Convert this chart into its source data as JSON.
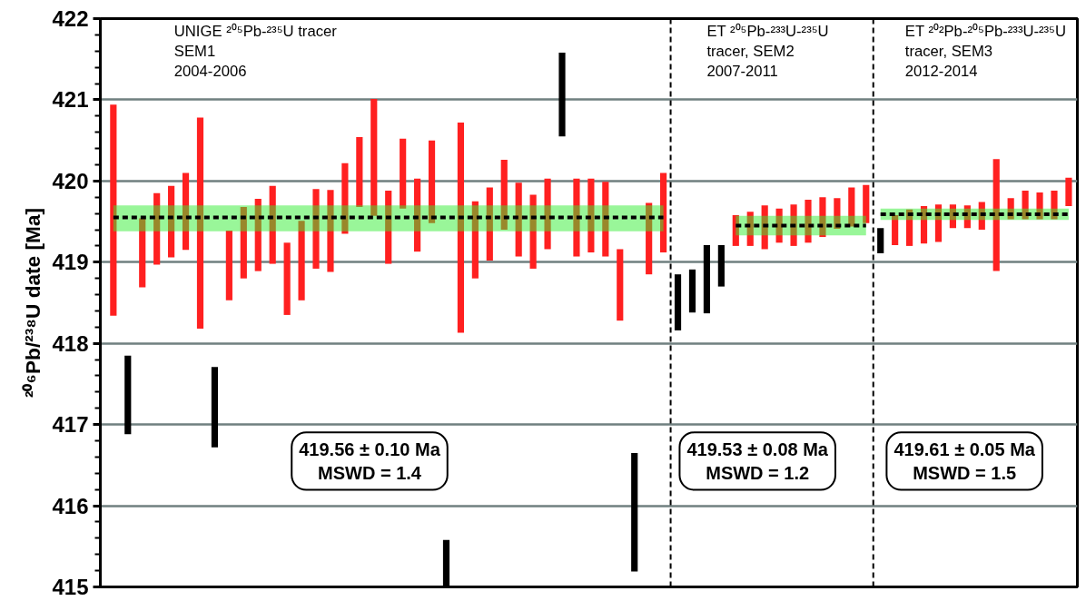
{
  "chart_data": {
    "type": "bar",
    "ylabel": "²⁰⁶Pb/²³⁸U date [Ma]",
    "categories": [
      null,
      null,
      null,
      null,
      null,
      null,
      null,
      null,
      null,
      null,
      null,
      null,
      null,
      null,
      null,
      null,
      null,
      null,
      null,
      null,
      null,
      null,
      null,
      null,
      null,
      null,
      null,
      null,
      null,
      null,
      null,
      null,
      null,
      null,
      null,
      null,
      null,
      null,
      null,
      null,
      null,
      null,
      null,
      null,
      null,
      null,
      null,
      null,
      null,
      null,
      null,
      null,
      null,
      null,
      null,
      null,
      null,
      null,
      null,
      null,
      null,
      null,
      null,
      null,
      null,
      null,
      null
    ],
    "ylim": [
      415,
      422
    ],
    "yticks": [
      415,
      416,
      417,
      418,
      419,
      420,
      421,
      422
    ],
    "grid": "y",
    "tick_labels": "y",
    "annotations": [
      "UNIGE ²⁰⁵Pb-²³⁵U tracer\nSEM1\n2004-2006",
      "ET ²⁰⁵Pb-²³³U-²³⁵U\ntracer, SEM2\n2007-2011",
      "ET ²⁰²Pb-²⁰⁵Pb-²³³U-²³⁵U\ntracer, SEM3\n2012-2014",
      "419.56 ± 0.10 Ma\nMSWD = 1.4",
      "419.53 ± 0.08 Ma\nMSWD = 1.2",
      "419.61 ± 0.05 Ma\nMSWD = 1.5"
    ],
    "series": [
      {
        "base": [
          418.34,
          416.88,
          418.69,
          418.97,
          419.06,
          419.15,
          418.18,
          416.72,
          418.53,
          418.8,
          418.89,
          418.98,
          418.35,
          418.53,
          418.92,
          418.88,
          419.35,
          419.68,
          419.57,
          418.98,
          419.66,
          419.13,
          419.48,
          415.0,
          418.13,
          418.8,
          419.02,
          419.4,
          419.07,
          418.92,
          419.16,
          420.55,
          419.07,
          419.12,
          419.07,
          418.28,
          415.19,
          418.85,
          419.12,
          418.16,
          418.38,
          418.37,
          418.7,
          419.2,
          419.2,
          419.16,
          419.24,
          419.2,
          419.24,
          419.31,
          419.41,
          419.44,
          419.48,
          419.11,
          419.21,
          419.2,
          419.23,
          419.25,
          419.42,
          419.42,
          419.4,
          418.89,
          419.53,
          419.53,
          419.53,
          419.53,
          419.69
        ],
        "values": [
          2.6,
          0.97,
          0.85,
          0.88,
          0.88,
          0.95,
          2.6,
          0.99,
          0.86,
          0.88,
          0.89,
          0.96,
          0.89,
          0.98,
          0.98,
          1.01,
          0.87,
          0.86,
          1.44,
          0.9,
          0.86,
          0.9,
          1.02,
          0.58,
          2.59,
          0.95,
          0.9,
          0.86,
          0.91,
          0.91,
          0.87,
          1.03,
          0.96,
          0.91,
          0.92,
          0.88,
          1.46,
          0.88,
          0.98,
          0.69,
          0.53,
          0.84,
          0.51,
          0.38,
          0.42,
          0.54,
          0.42,
          0.51,
          0.53,
          0.49,
          0.38,
          0.48,
          0.47,
          0.31,
          0.37,
          0.45,
          0.46,
          0.46,
          0.29,
          0.28,
          0.34,
          1.38,
          0.26,
          0.35,
          0.33,
          0.35,
          0.35
        ],
        "colors": [
          "#ff2020",
          "#000000",
          "#ff2020",
          "#ff2020",
          "#ff2020",
          "#ff2020",
          "#ff2020",
          "#000000",
          "#ff2020",
          "#ff2020",
          "#ff2020",
          "#ff2020",
          "#ff2020",
          "#ff2020",
          "#ff2020",
          "#ff2020",
          "#ff2020",
          "#ff2020",
          "#ff2020",
          "#ff2020",
          "#ff2020",
          "#ff2020",
          "#ff2020",
          "#000000",
          "#ff2020",
          "#ff2020",
          "#ff2020",
          "#ff2020",
          "#ff2020",
          "#ff2020",
          "#ff2020",
          "#000000",
          "#ff2020",
          "#ff2020",
          "#ff2020",
          "#ff2020",
          "#000000",
          "#ff2020",
          "#ff2020",
          "#000000",
          "#000000",
          "#000000",
          "#000000",
          "#ff2020",
          "#ff2020",
          "#ff2020",
          "#ff2020",
          "#ff2020",
          "#ff2020",
          "#ff2020",
          "#ff2020",
          "#ff2020",
          "#ff2020",
          "#000000",
          "#ff2020",
          "#ff2020",
          "#ff2020",
          "#ff2020",
          "#ff2020",
          "#ff2020",
          "#ff2020",
          "#ff2020",
          "#ff2020",
          "#ff2020",
          "#ff2020",
          "#ff2020",
          "#ff2020"
        ]
      },
      {
        "type": "line",
        "values": [
          419.55,
          419.55,
          419.55,
          419.55,
          419.55,
          419.55,
          419.55,
          419.55,
          419.55,
          419.55,
          419.55,
          419.55,
          419.55,
          419.55,
          419.55,
          419.55,
          419.55,
          419.55,
          419.55,
          419.55,
          419.55,
          419.55,
          419.55,
          419.55,
          419.55,
          419.55,
          419.55,
          419.55,
          419.55,
          419.55,
          419.55,
          419.55,
          419.55,
          419.55,
          419.55,
          419.55,
          419.55,
          419.55,
          419.55,
          null,
          null,
          null,
          null,
          null,
          null,
          null,
          null,
          null,
          null,
          null,
          null,
          null,
          null,
          null,
          null,
          null,
          null,
          null,
          null,
          null,
          null,
          null,
          null,
          null,
          null,
          null,
          null
        ],
        "lower": [
          419.38,
          419.38,
          419.38,
          419.38,
          419.38,
          419.38,
          419.38,
          419.38,
          419.38,
          419.38,
          419.38,
          419.38,
          419.38,
          419.38,
          419.38,
          419.38,
          419.38,
          419.38,
          419.38,
          419.38,
          419.38,
          419.38,
          419.38,
          419.38,
          419.38,
          419.38,
          419.38,
          419.38,
          419.38,
          419.38,
          419.38,
          419.38,
          419.38,
          419.38,
          419.38,
          419.38,
          419.38,
          419.38,
          419.38,
          null,
          null,
          null,
          null,
          null,
          null,
          null,
          null,
          null,
          null,
          null,
          null,
          null,
          null,
          null,
          null,
          null,
          null,
          null,
          null,
          null,
          null,
          null,
          null,
          null,
          null,
          null,
          null
        ],
        "upper": [
          419.7,
          419.7,
          419.7,
          419.7,
          419.7,
          419.7,
          419.7,
          419.7,
          419.7,
          419.7,
          419.7,
          419.7,
          419.7,
          419.7,
          419.7,
          419.7,
          419.7,
          419.7,
          419.7,
          419.7,
          419.7,
          419.7,
          419.7,
          419.7,
          419.7,
          419.7,
          419.7,
          419.7,
          419.7,
          419.7,
          419.7,
          419.7,
          419.7,
          419.7,
          419.7,
          419.7,
          419.7,
          419.7,
          419.7,
          null,
          null,
          null,
          null,
          null,
          null,
          null,
          null,
          null,
          null,
          null,
          null,
          null,
          null,
          null,
          null,
          null,
          null,
          null,
          null,
          null,
          null,
          null,
          null,
          null,
          null,
          null,
          null
        ],
        "color": "#000000",
        "line_style": "dashed"
      },
      {
        "type": "line",
        "values": [
          null,
          null,
          null,
          null,
          null,
          null,
          null,
          null,
          null,
          null,
          null,
          null,
          null,
          null,
          null,
          null,
          null,
          null,
          null,
          null,
          null,
          null,
          null,
          null,
          null,
          null,
          null,
          null,
          null,
          null,
          null,
          null,
          null,
          null,
          null,
          null,
          null,
          null,
          null,
          null,
          null,
          null,
          null,
          419.45,
          419.45,
          419.45,
          419.45,
          419.45,
          419.45,
          419.45,
          419.45,
          419.45,
          419.45,
          null,
          null,
          null,
          null,
          null,
          null,
          null,
          null,
          null,
          null,
          null,
          null,
          null,
          null
        ],
        "lower": [
          null,
          null,
          null,
          null,
          null,
          null,
          null,
          null,
          null,
          null,
          null,
          null,
          null,
          null,
          null,
          null,
          null,
          null,
          null,
          null,
          null,
          null,
          null,
          null,
          null,
          null,
          null,
          null,
          null,
          null,
          null,
          null,
          null,
          null,
          null,
          null,
          null,
          null,
          null,
          null,
          null,
          null,
          null,
          419.33,
          419.33,
          419.33,
          419.33,
          419.33,
          419.33,
          419.33,
          419.33,
          419.33,
          419.33,
          null,
          null,
          null,
          null,
          null,
          null,
          null,
          null,
          null,
          null,
          null,
          null,
          null,
          null
        ],
        "upper": [
          null,
          null,
          null,
          null,
          null,
          null,
          null,
          null,
          null,
          null,
          null,
          null,
          null,
          null,
          null,
          null,
          null,
          null,
          null,
          null,
          null,
          null,
          null,
          null,
          null,
          null,
          null,
          null,
          null,
          null,
          null,
          null,
          null,
          null,
          null,
          null,
          null,
          null,
          null,
          null,
          null,
          null,
          null,
          419.57,
          419.57,
          419.57,
          419.57,
          419.57,
          419.57,
          419.57,
          419.57,
          419.57,
          419.57,
          null,
          null,
          null,
          null,
          null,
          null,
          null,
          null,
          null,
          null,
          null,
          null,
          null,
          null
        ],
        "color": "#000000",
        "line_style": "dashed"
      },
      {
        "type": "line",
        "values": [
          null,
          null,
          null,
          null,
          null,
          null,
          null,
          null,
          null,
          null,
          null,
          null,
          null,
          null,
          null,
          null,
          null,
          null,
          null,
          null,
          null,
          null,
          null,
          null,
          null,
          null,
          null,
          null,
          null,
          null,
          null,
          null,
          null,
          null,
          null,
          null,
          null,
          null,
          null,
          null,
          null,
          null,
          null,
          null,
          null,
          null,
          null,
          null,
          null,
          null,
          null,
          null,
          null,
          419.59,
          419.59,
          419.59,
          419.59,
          419.59,
          419.59,
          419.59,
          419.59,
          419.59,
          419.59,
          419.59,
          419.59,
          419.59,
          419.59
        ],
        "lower": [
          null,
          null,
          null,
          null,
          null,
          null,
          null,
          null,
          null,
          null,
          null,
          null,
          null,
          null,
          null,
          null,
          null,
          null,
          null,
          null,
          null,
          null,
          null,
          null,
          null,
          null,
          null,
          null,
          null,
          null,
          null,
          null,
          null,
          null,
          null,
          null,
          null,
          null,
          null,
          null,
          null,
          null,
          null,
          null,
          null,
          null,
          null,
          null,
          null,
          null,
          null,
          null,
          null,
          419.52,
          419.52,
          419.52,
          419.52,
          419.52,
          419.52,
          419.52,
          419.52,
          419.52,
          419.52,
          419.52,
          419.52,
          419.52,
          419.52
        ],
        "upper": [
          null,
          null,
          null,
          null,
          null,
          null,
          null,
          null,
          null,
          null,
          null,
          null,
          null,
          null,
          null,
          null,
          null,
          null,
          null,
          null,
          null,
          null,
          null,
          null,
          null,
          null,
          null,
          null,
          null,
          null,
          null,
          null,
          null,
          null,
          null,
          null,
          null,
          null,
          null,
          null,
          null,
          null,
          null,
          null,
          null,
          null,
          null,
          null,
          null,
          null,
          null,
          null,
          null,
          419.66,
          419.66,
          419.66,
          419.66,
          419.66,
          419.66,
          419.66,
          419.66,
          419.66,
          419.66,
          419.66,
          419.66,
          419.66,
          419.66
        ],
        "color": "#000000",
        "line_style": "dashed"
      }
    ]
  }
}
